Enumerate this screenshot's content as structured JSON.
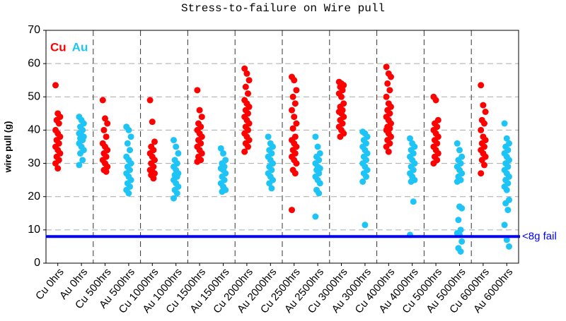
{
  "chart_data": {
    "type": "strip",
    "title": "Stress-to-failure on Wire pull",
    "ylabel": "wire pull (g)",
    "categories": [
      "Cu 0hrs",
      "Au 0hrs",
      "Cu 500hrs",
      "Au 500hrs",
      "Cu 1000hrs",
      "Au 1000hrs",
      "Cu 1500hrs",
      "Au 1500hrs",
      "Cu 2000hrs",
      "Au 2000hrs",
      "Cu 2500hrs",
      "Au 2500hrs",
      "Cu 3000hrs",
      "Au 3000hrs",
      "Cu 4000hrs",
      "Au 4000hrs",
      "Cu 5000hrs",
      "Au 5000hrs",
      "Cu 6000hrs",
      "Au 6000hrs"
    ],
    "series": [
      {
        "name": "Cu",
        "color": "#ff0000",
        "values": [
          [
            53.5,
            45,
            44,
            43,
            42,
            40,
            39,
            38,
            37,
            36,
            35,
            34,
            33,
            32,
            31,
            30,
            28.5
          ],
          null,
          [
            49,
            43.5,
            42,
            40,
            38,
            36,
            35,
            34,
            33,
            32,
            31,
            30,
            29,
            28,
            27.5
          ],
          null,
          [
            49,
            42.5,
            36.5,
            35,
            34,
            33,
            32,
            31,
            30,
            29,
            28,
            27.5,
            27,
            26.5,
            25.5
          ],
          null,
          [
            52,
            46,
            44,
            42,
            41,
            40,
            39,
            38,
            37,
            36,
            35,
            34,
            33,
            32,
            31,
            30.5
          ],
          null,
          [
            58.5,
            57,
            55,
            53,
            51,
            49,
            48,
            47,
            46,
            45,
            44,
            43,
            42,
            41,
            40,
            39,
            38,
            37,
            36,
            35,
            33.5
          ],
          null,
          [
            56,
            55,
            52,
            50,
            48,
            46,
            44,
            42,
            40.5,
            38,
            37,
            36,
            35,
            34,
            33,
            32,
            31,
            30,
            28,
            27,
            16
          ],
          null,
          [
            54.5,
            54,
            53.5,
            53,
            52,
            51,
            50,
            48,
            47,
            46,
            45.5,
            45,
            44,
            43,
            42,
            41,
            40,
            39,
            38
          ],
          null,
          [
            59,
            57,
            56,
            54,
            52,
            50,
            48,
            47,
            46,
            45,
            44,
            43,
            42,
            41,
            40.5,
            40,
            39,
            38,
            37,
            36,
            35,
            33.5
          ],
          null,
          [
            50,
            49,
            43,
            42,
            41,
            40,
            39,
            38,
            37,
            36,
            35,
            34,
            33,
            32,
            31,
            30
          ],
          null,
          [
            53.5,
            47.5,
            45.5,
            43,
            42,
            40,
            38,
            37,
            36,
            35,
            34,
            33,
            32,
            31,
            29.5,
            27
          ],
          null
        ]
      },
      {
        "name": "Au",
        "color": "#1ec4f5",
        "values": [
          null,
          [
            44,
            43,
            42,
            41,
            40,
            39,
            38.5,
            38,
            37.5,
            37,
            36,
            35,
            34,
            33,
            31,
            29.5
          ],
          null,
          [
            41,
            40,
            38,
            36,
            34,
            32,
            31,
            30,
            29,
            28,
            27,
            26,
            25,
            24,
            23,
            22,
            21
          ],
          null,
          [
            37,
            35,
            33,
            31,
            30,
            29,
            28,
            27,
            26.5,
            26,
            25,
            24,
            23,
            22,
            21,
            19.5
          ],
          null,
          [
            34.5,
            33,
            31,
            30,
            29,
            28.5,
            28,
            27,
            26,
            25,
            24,
            23,
            22,
            21.5
          ],
          null,
          [
            38,
            36,
            35,
            34,
            33,
            32,
            31,
            30,
            29,
            28,
            27,
            26,
            25,
            24,
            22.5
          ],
          null,
          [
            38,
            35,
            33,
            32,
            31,
            30,
            29,
            28.5,
            28,
            27,
            26,
            25,
            24,
            22,
            21,
            14
          ],
          null,
          [
            39.5,
            39,
            38,
            37,
            36,
            35,
            34,
            33,
            32,
            31,
            30,
            29,
            28,
            27,
            26,
            24.5,
            11.5
          ],
          null,
          [
            37.5,
            36,
            35,
            34,
            33,
            32,
            31,
            30,
            29,
            28,
            27,
            26,
            25,
            24.5,
            18.5,
            8.5
          ],
          null,
          [
            36,
            34,
            32,
            31,
            30,
            29,
            28,
            27,
            26,
            25,
            24.5,
            17,
            16.5,
            13,
            10,
            9,
            8.5,
            6.5,
            4.5,
            3.5
          ],
          null,
          [
            42,
            37.5,
            36,
            35,
            34,
            33,
            32,
            31,
            30,
            29,
            28,
            27,
            26,
            25,
            24,
            23,
            22,
            19,
            18,
            16,
            11.5,
            7,
            5
          ]
        ]
      }
    ],
    "hlines": [
      {
        "value": 8,
        "label": "<8g fail",
        "color": "#0000ff"
      }
    ],
    "ylim": [
      0,
      70
    ],
    "yticks": [
      0,
      10,
      20,
      30,
      40,
      50,
      60,
      70
    ],
    "grid": true
  }
}
